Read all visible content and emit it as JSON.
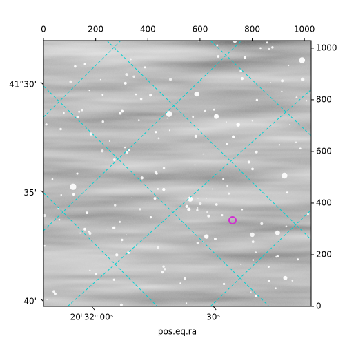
{
  "chart_data": {
    "type": "image",
    "xlabel": "pos.eq.ra",
    "xlim": [
      0,
      1026
    ],
    "xticks": [
      0,
      200,
      400,
      600,
      800,
      1000
    ],
    "ylim": [
      0,
      1029
    ],
    "yticks": [
      0,
      200,
      400,
      600,
      800,
      1000
    ],
    "ra_ticks": [
      {
        "value": 185,
        "label": "20ʰ32ᵐ00ˢ"
      },
      {
        "value": 651,
        "label": "30ˢ"
      }
    ],
    "dec_ticks": [
      {
        "value": 858,
        "label": "41°30'"
      },
      {
        "value": 439,
        "label": "35'"
      },
      {
        "value": 19,
        "label": "40'"
      }
    ],
    "grid": true,
    "grid_color": "#00d0d0"
  }
}
